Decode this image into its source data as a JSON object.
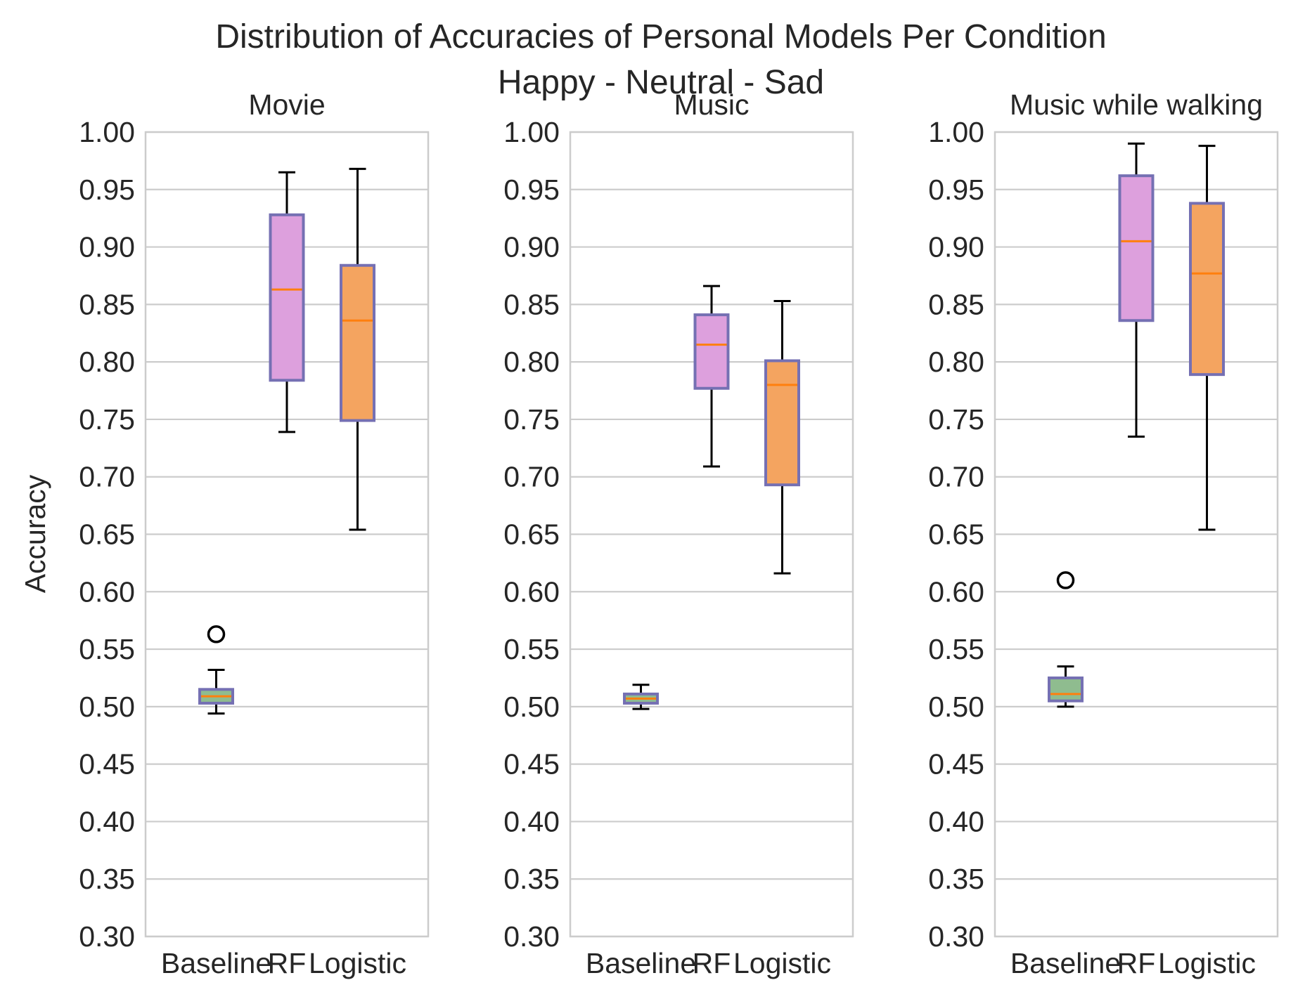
{
  "chart_data": {
    "type": "box",
    "title": "Distribution of Accuracies of Personal Models Per Condition",
    "subtitle": "Happy - Neutral - Sad",
    "ylabel": "Accuracy",
    "ylim": [
      0.3,
      1.0
    ],
    "yticks": [
      "0.30",
      "0.35",
      "0.40",
      "0.45",
      "0.50",
      "0.55",
      "0.60",
      "0.65",
      "0.70",
      "0.75",
      "0.80",
      "0.85",
      "0.90",
      "0.95",
      "1.00"
    ],
    "categories": [
      "Baseline",
      "RF",
      "Logistic"
    ],
    "grid": "horizontal",
    "colors": {
      "baseline_fill": "#8fbc8f",
      "rf_fill": "#dda0dd",
      "logistic_fill": "#f4a460",
      "box_edge": "#7570b3",
      "median": "#ff7f0e",
      "whisker": "#000000",
      "grid": "#cccccc",
      "frame": "#cccccc"
    },
    "panels": [
      {
        "title": "Movie",
        "boxes": [
          {
            "category": "Baseline",
            "whislo": 0.494,
            "q1": 0.503,
            "median": 0.509,
            "q3": 0.515,
            "whishi": 0.532,
            "fliers": [
              0.563
            ]
          },
          {
            "category": "RF",
            "whislo": 0.739,
            "q1": 0.784,
            "median": 0.863,
            "q3": 0.928,
            "whishi": 0.965,
            "fliers": []
          },
          {
            "category": "Logistic",
            "whislo": 0.654,
            "q1": 0.749,
            "median": 0.836,
            "q3": 0.884,
            "whishi": 0.968,
            "fliers": []
          }
        ]
      },
      {
        "title": "Music",
        "boxes": [
          {
            "category": "Baseline",
            "whislo": 0.498,
            "q1": 0.503,
            "median": 0.507,
            "q3": 0.511,
            "whishi": 0.519,
            "fliers": []
          },
          {
            "category": "RF",
            "whislo": 0.709,
            "q1": 0.777,
            "median": 0.815,
            "q3": 0.841,
            "whishi": 0.866,
            "fliers": []
          },
          {
            "category": "Logistic",
            "whislo": 0.616,
            "q1": 0.693,
            "median": 0.78,
            "q3": 0.801,
            "whishi": 0.853,
            "fliers": []
          }
        ]
      },
      {
        "title": "Music while walking",
        "boxes": [
          {
            "category": "Baseline",
            "whislo": 0.5,
            "q1": 0.505,
            "median": 0.511,
            "q3": 0.525,
            "whishi": 0.535,
            "fliers": [
              0.61
            ]
          },
          {
            "category": "RF",
            "whislo": 0.735,
            "q1": 0.836,
            "median": 0.905,
            "q3": 0.962,
            "whishi": 0.99,
            "fliers": []
          },
          {
            "category": "Logistic",
            "whislo": 0.654,
            "q1": 0.789,
            "median": 0.877,
            "q3": 0.938,
            "whishi": 0.988,
            "fliers": []
          }
        ]
      }
    ]
  }
}
